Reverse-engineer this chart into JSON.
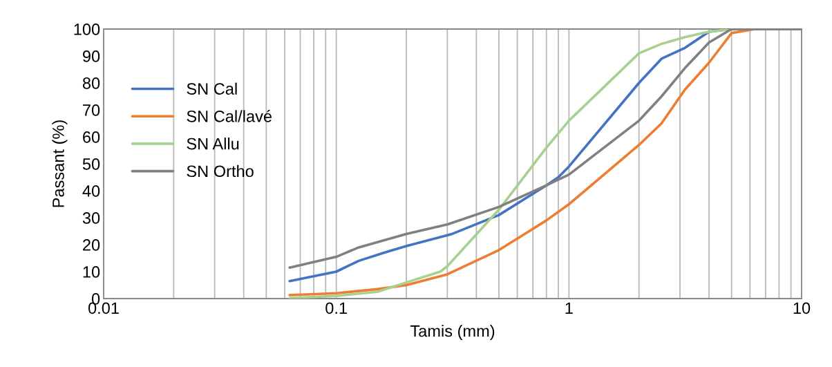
{
  "chart_data": {
    "type": "line",
    "xlabel": "Tamis (mm)",
    "ylabel": "Passant (%)",
    "log": "x",
    "xlim": [
      0.01,
      10
    ],
    "xticks": [
      0.01,
      0.1,
      1,
      10
    ],
    "ylim": [
      0,
      100
    ],
    "yticks": [
      0,
      10,
      20,
      30,
      40,
      50,
      60,
      70,
      80,
      90,
      100
    ],
    "grid": "x",
    "legend": "left",
    "marker": "none",
    "line_style": "solid",
    "series": [
      {
        "name": "SN Cal",
        "color": "#4472c4",
        "x": [
          0.063,
          0.1,
          0.125,
          0.16,
          0.2,
          0.315,
          0.5,
          0.8,
          0.9,
          1,
          2,
          2.5,
          3.15,
          4,
          5,
          10
        ],
        "values": [
          6.5,
          10,
          14,
          17,
          19.5,
          24,
          31,
          42,
          45,
          49,
          80,
          89,
          93,
          99,
          100,
          100
        ]
      },
      {
        "name": "SN Cal/lavé",
        "color": "#ed7d31",
        "x": [
          0.063,
          0.1,
          0.15,
          0.2,
          0.3,
          0.5,
          0.8,
          1,
          2,
          2.5,
          3.15,
          4,
          5,
          6.3,
          10
        ],
        "values": [
          1.3,
          2,
          3.5,
          5,
          9,
          18,
          29,
          35,
          57,
          65,
          77.5,
          87.5,
          98.5,
          100,
          100
        ]
      },
      {
        "name": "SN Allu",
        "color": "#a9d18e",
        "x": [
          0.063,
          0.1,
          0.15,
          0.2,
          0.28,
          0.3,
          0.5,
          0.8,
          1,
          2,
          2.5,
          3.15,
          4,
          5
        ],
        "values": [
          0.2,
          1,
          2.5,
          6,
          10,
          12,
          33,
          56,
          66,
          91,
          94.5,
          97,
          99,
          100
        ]
      },
      {
        "name": "SN Ortho",
        "color": "#808080",
        "x": [
          0.063,
          0.1,
          0.125,
          0.2,
          0.3,
          0.5,
          0.8,
          1,
          2,
          2.5,
          3.15,
          4,
          5,
          10
        ],
        "values": [
          11.5,
          15.5,
          19,
          24,
          27.5,
          34,
          42,
          46,
          66,
          75,
          85.5,
          95,
          100,
          100
        ]
      }
    ]
  }
}
